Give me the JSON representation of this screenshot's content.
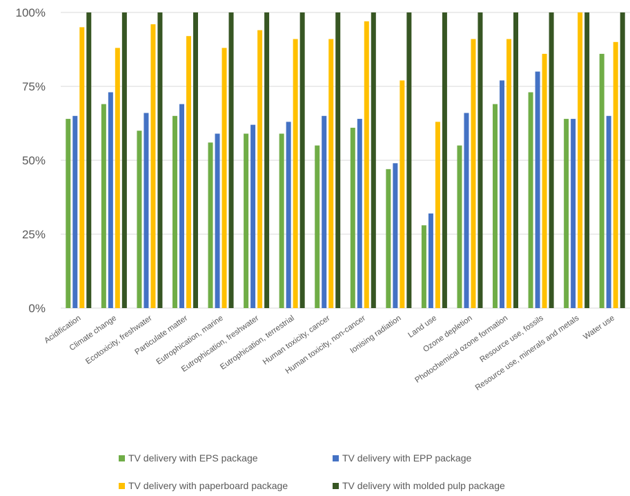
{
  "chart_data": {
    "type": "bar",
    "title": "",
    "xlabel": "",
    "ylabel": "",
    "ylim": [
      0,
      100
    ],
    "yticks": [
      "0%",
      "25%",
      "50%",
      "75%",
      "100%"
    ],
    "grid": "horizontal",
    "legend_position": "bottom",
    "categories": [
      "Acidification",
      "Climate change",
      "Ecotoxicity, freshwater",
      "Particulate matter",
      "Eutrophication, marine",
      "Eutrophication, freshwater",
      "Eutrophication, terrestrial",
      "Human toxicity, cancer",
      "Human toxicity, non-cancer",
      "Ionising radiation",
      "Land use",
      "Ozone depletion",
      "Photochemical ozone formation",
      "Resource use, fossils",
      "Resource use, minerals and metals",
      "Water use"
    ],
    "series": [
      {
        "name": "TV delivery with EPS package",
        "color": "#70AD47",
        "values": [
          64,
          69,
          60,
          65,
          56,
          59,
          59,
          55,
          61,
          47,
          28,
          55,
          69,
          73,
          64,
          86
        ]
      },
      {
        "name": "TV delivery with EPP package",
        "color": "#4472C4",
        "values": [
          65,
          73,
          66,
          69,
          59,
          62,
          63,
          65,
          64,
          49,
          32,
          66,
          77,
          80,
          64,
          65
        ]
      },
      {
        "name": "TV delivery with paperboard package",
        "color": "#FFC000",
        "values": [
          95,
          88,
          96,
          92,
          88,
          94,
          91,
          91,
          97,
          77,
          63,
          91,
          91,
          86,
          100,
          90
        ]
      },
      {
        "name": "TV delivery with molded pulp package",
        "color": "#375623",
        "values": [
          100,
          100,
          100,
          100,
          100,
          100,
          100,
          100,
          100,
          100,
          100,
          100,
          100,
          100,
          100,
          100
        ]
      }
    ]
  }
}
